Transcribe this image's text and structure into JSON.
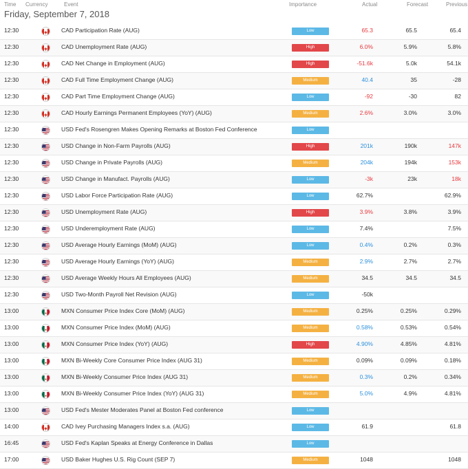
{
  "header": {
    "time": "Time",
    "currency": "Currency",
    "event": "Event",
    "importance": "Importance",
    "actual": "Actual",
    "forecast": "Forecast",
    "previous": "Previous"
  },
  "date_label": "Friday, September 7, 2018",
  "importance_colors": {
    "Low": "#5cb9e6",
    "High": "#e2474a",
    "Medium": "#f4b142"
  },
  "value_colors": {
    "neg": "#e8383d",
    "pos": "#2c8fdc",
    "neu": "#333333"
  },
  "flag_colors": {
    "CAD": "#d52b1e",
    "USD": "#3c3b6e",
    "MXN": "#006847"
  },
  "rows": [
    {
      "time": "12:30",
      "currency": "CAD",
      "event": "CAD Participation Rate (AUG)",
      "importance": "Low",
      "actual": "65.3",
      "actual_tone": "neg",
      "forecast": "65.5",
      "previous": "65.4",
      "previous_tone": "neu"
    },
    {
      "time": "12:30",
      "currency": "CAD",
      "event": "CAD Unemployment Rate (AUG)",
      "importance": "High",
      "actual": "6.0%",
      "actual_tone": "neg",
      "forecast": "5.9%",
      "previous": "5.8%",
      "previous_tone": "neu"
    },
    {
      "time": "12:30",
      "currency": "CAD",
      "event": "CAD Net Change in Employment (AUG)",
      "importance": "High",
      "actual": "-51.6k",
      "actual_tone": "neg",
      "forecast": "5.0k",
      "previous": "54.1k",
      "previous_tone": "neu"
    },
    {
      "time": "12:30",
      "currency": "CAD",
      "event": "CAD Full Time Employment Change (AUG)",
      "importance": "Medium",
      "actual": "40.4",
      "actual_tone": "pos",
      "forecast": "35",
      "previous": "-28",
      "previous_tone": "neu"
    },
    {
      "time": "12:30",
      "currency": "CAD",
      "event": "CAD Part Time Employment Change (AUG)",
      "importance": "Low",
      "actual": "-92",
      "actual_tone": "neg",
      "forecast": "-30",
      "previous": "82",
      "previous_tone": "neu"
    },
    {
      "time": "12:30",
      "currency": "CAD",
      "event": "CAD Hourly Earnings Permanent Employees (YoY) (AUG)",
      "importance": "Medium",
      "actual": "2.6%",
      "actual_tone": "neg",
      "forecast": "3.0%",
      "previous": "3.0%",
      "previous_tone": "neu"
    },
    {
      "time": "12:30",
      "currency": "USD",
      "event": "USD Fed's Rosengren Makes Opening Remarks at Boston Fed Conference",
      "importance": "Low",
      "actual": "",
      "actual_tone": "neu",
      "forecast": "",
      "previous": "",
      "previous_tone": "neu"
    },
    {
      "time": "12:30",
      "currency": "USD",
      "event": "USD Change in Non-Farm Payrolls (AUG)",
      "importance": "High",
      "actual": "201k",
      "actual_tone": "pos",
      "forecast": "190k",
      "previous": "147k",
      "previous_tone": "neg"
    },
    {
      "time": "12:30",
      "currency": "USD",
      "event": "USD Change in Private Payrolls (AUG)",
      "importance": "Medium",
      "actual": "204k",
      "actual_tone": "pos",
      "forecast": "194k",
      "previous": "153k",
      "previous_tone": "neg"
    },
    {
      "time": "12:30",
      "currency": "USD",
      "event": "USD Change in Manufact. Payrolls (AUG)",
      "importance": "Low",
      "actual": "-3k",
      "actual_tone": "neg",
      "forecast": "23k",
      "previous": "18k",
      "previous_tone": "neg"
    },
    {
      "time": "12:30",
      "currency": "USD",
      "event": "USD Labor Force Participation Rate (AUG)",
      "importance": "Low",
      "actual": "62.7%",
      "actual_tone": "neu",
      "forecast": "",
      "previous": "62.9%",
      "previous_tone": "neu"
    },
    {
      "time": "12:30",
      "currency": "USD",
      "event": "USD Unemployment Rate (AUG)",
      "importance": "High",
      "actual": "3.9%",
      "actual_tone": "neg",
      "forecast": "3.8%",
      "previous": "3.9%",
      "previous_tone": "neu"
    },
    {
      "time": "12:30",
      "currency": "USD",
      "event": "USD Underemployment Rate (AUG)",
      "importance": "Low",
      "actual": "7.4%",
      "actual_tone": "neu",
      "forecast": "",
      "previous": "7.5%",
      "previous_tone": "neu"
    },
    {
      "time": "12:30",
      "currency": "USD",
      "event": "USD Average Hourly Earnings (MoM) (AUG)",
      "importance": "Low",
      "actual": "0.4%",
      "actual_tone": "pos",
      "forecast": "0.2%",
      "previous": "0.3%",
      "previous_tone": "neu"
    },
    {
      "time": "12:30",
      "currency": "USD",
      "event": "USD Average Hourly Earnings (YoY) (AUG)",
      "importance": "Medium",
      "actual": "2.9%",
      "actual_tone": "pos",
      "forecast": "2.7%",
      "previous": "2.7%",
      "previous_tone": "neu"
    },
    {
      "time": "12:30",
      "currency": "USD",
      "event": "USD Average Weekly Hours All Employees (AUG)",
      "importance": "Medium",
      "actual": "34.5",
      "actual_tone": "neu",
      "forecast": "34.5",
      "previous": "34.5",
      "previous_tone": "neu"
    },
    {
      "time": "12:30",
      "currency": "USD",
      "event": "USD Two-Month Payroll Net Revision (AUG)",
      "importance": "Low",
      "actual": "-50k",
      "actual_tone": "neu",
      "forecast": "",
      "previous": "",
      "previous_tone": "neu"
    },
    {
      "time": "13:00",
      "currency": "MXN",
      "event": "MXN Consumer Price Index Core (MoM) (AUG)",
      "importance": "Medium",
      "actual": "0.25%",
      "actual_tone": "neu",
      "forecast": "0.25%",
      "previous": "0.29%",
      "previous_tone": "neu"
    },
    {
      "time": "13:00",
      "currency": "MXN",
      "event": "MXN Consumer Price Index (MoM) (AUG)",
      "importance": "Medium",
      "actual": "0.58%",
      "actual_tone": "pos",
      "forecast": "0.53%",
      "previous": "0.54%",
      "previous_tone": "neu"
    },
    {
      "time": "13:00",
      "currency": "MXN",
      "event": "MXN Consumer Price Index (YoY) (AUG)",
      "importance": "High",
      "actual": "4.90%",
      "actual_tone": "pos",
      "forecast": "4.85%",
      "previous": "4.81%",
      "previous_tone": "neu"
    },
    {
      "time": "13:00",
      "currency": "MXN",
      "event": "MXN Bi-Weekly Core Consumer Price Index (AUG 31)",
      "importance": "Medium",
      "actual": "0.09%",
      "actual_tone": "neu",
      "forecast": "0.09%",
      "previous": "0.18%",
      "previous_tone": "neu"
    },
    {
      "time": "13:00",
      "currency": "MXN",
      "event": "MXN Bi-Weekly Consumer Price Index (AUG 31)",
      "importance": "Medium",
      "actual": "0.3%",
      "actual_tone": "pos",
      "forecast": "0.2%",
      "previous": "0.34%",
      "previous_tone": "neu"
    },
    {
      "time": "13:00",
      "currency": "MXN",
      "event": "MXN Bi-Weekly Consumer Price Index (YoY) (AUG 31)",
      "importance": "Medium",
      "actual": "5.0%",
      "actual_tone": "pos",
      "forecast": "4.9%",
      "previous": "4.81%",
      "previous_tone": "neu"
    },
    {
      "time": "13:00",
      "currency": "USD",
      "event": "USD Fed's Mester Moderates Panel at Boston Fed conference",
      "importance": "Low",
      "actual": "",
      "actual_tone": "neu",
      "forecast": "",
      "previous": "",
      "previous_tone": "neu"
    },
    {
      "time": "14:00",
      "currency": "CAD",
      "event": "CAD Ivey Purchasing Managers Index s.a. (AUG)",
      "importance": "Low",
      "actual": "61.9",
      "actual_tone": "neu",
      "forecast": "",
      "previous": "61.8",
      "previous_tone": "neu"
    },
    {
      "time": "16:45",
      "currency": "USD",
      "event": "USD Fed's Kaplan Speaks at Energy Conference in Dallas",
      "importance": "Low",
      "actual": "",
      "actual_tone": "neu",
      "forecast": "",
      "previous": "",
      "previous_tone": "neu"
    },
    {
      "time": "17:00",
      "currency": "USD",
      "event": "USD Baker Hughes U.S. Rig Count (SEP 7)",
      "importance": "Medium",
      "actual": "1048",
      "actual_tone": "neu",
      "forecast": "",
      "previous": "1048",
      "previous_tone": "neu"
    }
  ]
}
